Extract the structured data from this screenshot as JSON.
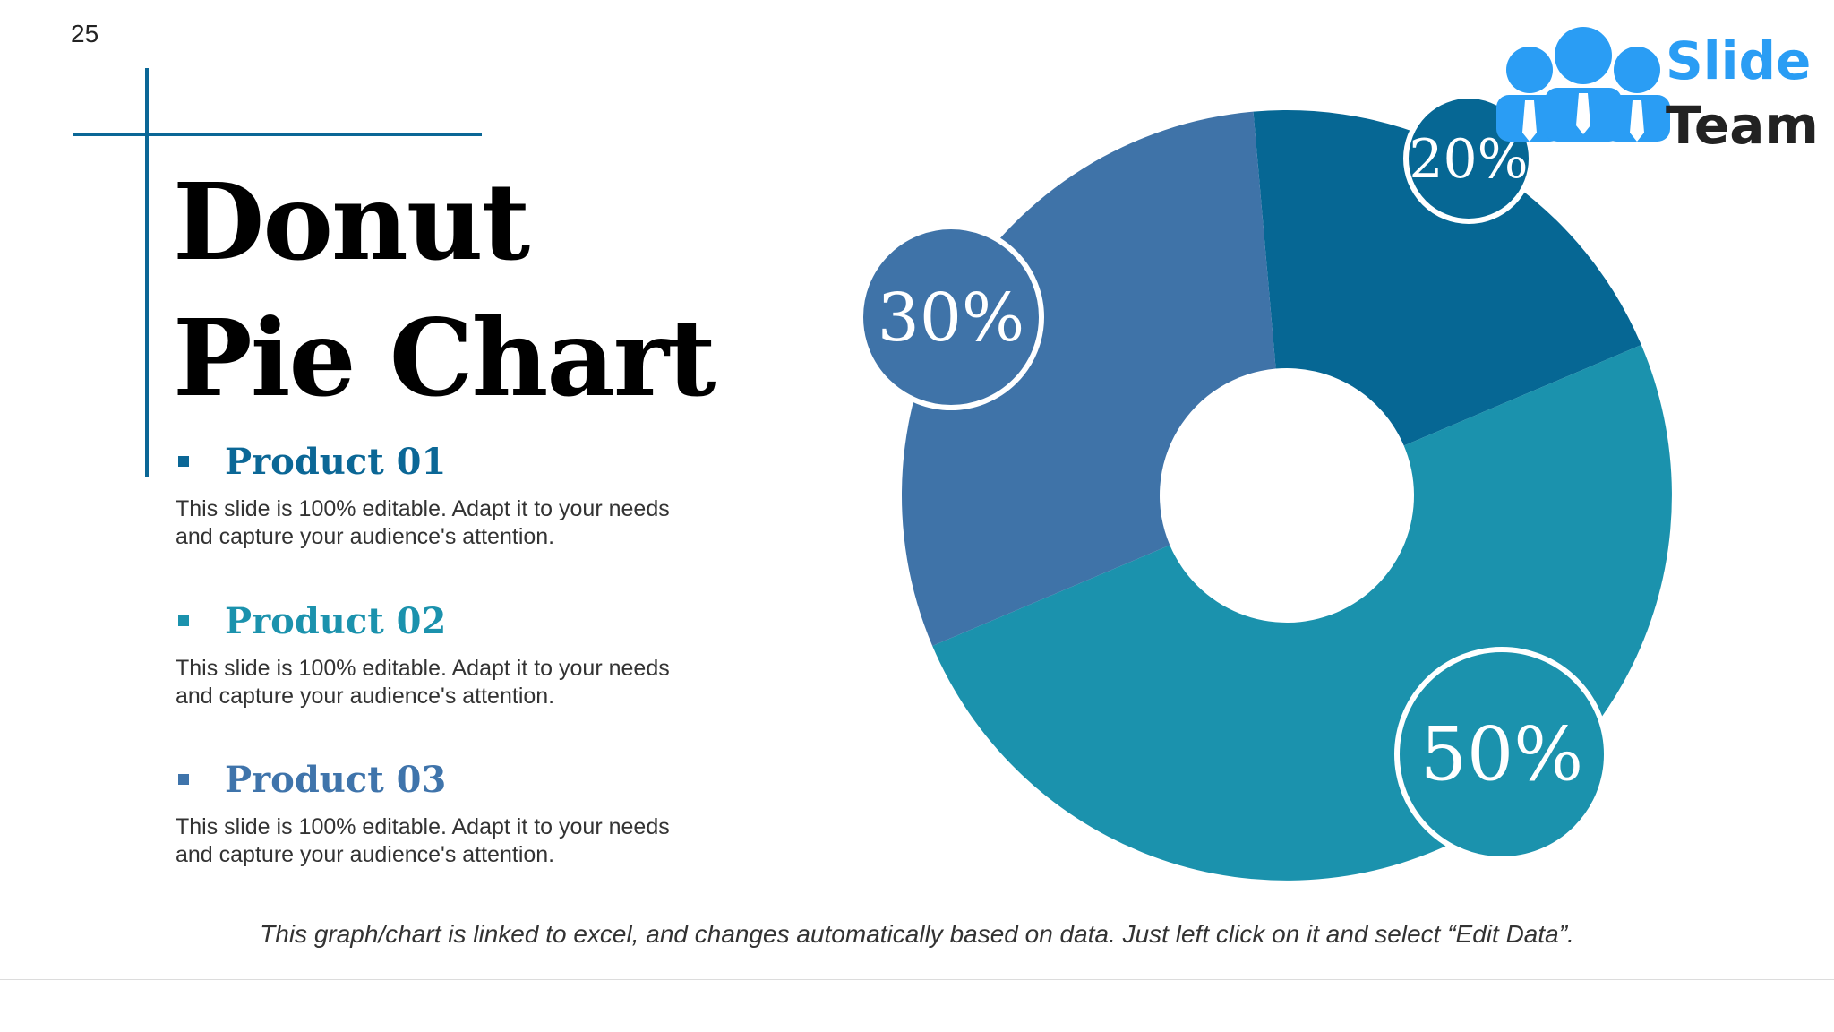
{
  "slide_number": "25",
  "title_lines": [
    "Donut",
    "Pie Chart"
  ],
  "products": [
    {
      "label": "Product 01",
      "description": "This slide is 100% editable. Adapt it to your needs and capture your audience's attention.",
      "color": "#0b6796"
    },
    {
      "label": "Product 02",
      "description": "This slide is 100% editable. Adapt it to your needs and capture your audience's attention.",
      "color": "#1b92ad"
    },
    {
      "label": "Product 03",
      "description": "This slide is 100% editable. Adapt it to your needs and capture your audience's attention.",
      "color": "#3f74ab"
    }
  ],
  "footnote": "This graph/chart is linked to excel, and changes automatically based on data. Just left click on it and select “Edit Data”.",
  "logo": {
    "line1": "Slide",
    "line2": "Team",
    "color_primary": "#2a9df4",
    "color_secondary": "#222222"
  },
  "colors": {
    "accent": "#0b6796",
    "white": "#ffffff"
  },
  "chart_data": {
    "type": "pie",
    "style": "donut",
    "categories": [
      "Product 01",
      "Product 02",
      "Product 03"
    ],
    "values": [
      20,
      50,
      30
    ],
    "labels": [
      "20%",
      "50%",
      "30%"
    ],
    "colors": [
      "#066794",
      "#1b92ad",
      "#3f73a8"
    ],
    "legend": "left"
  }
}
